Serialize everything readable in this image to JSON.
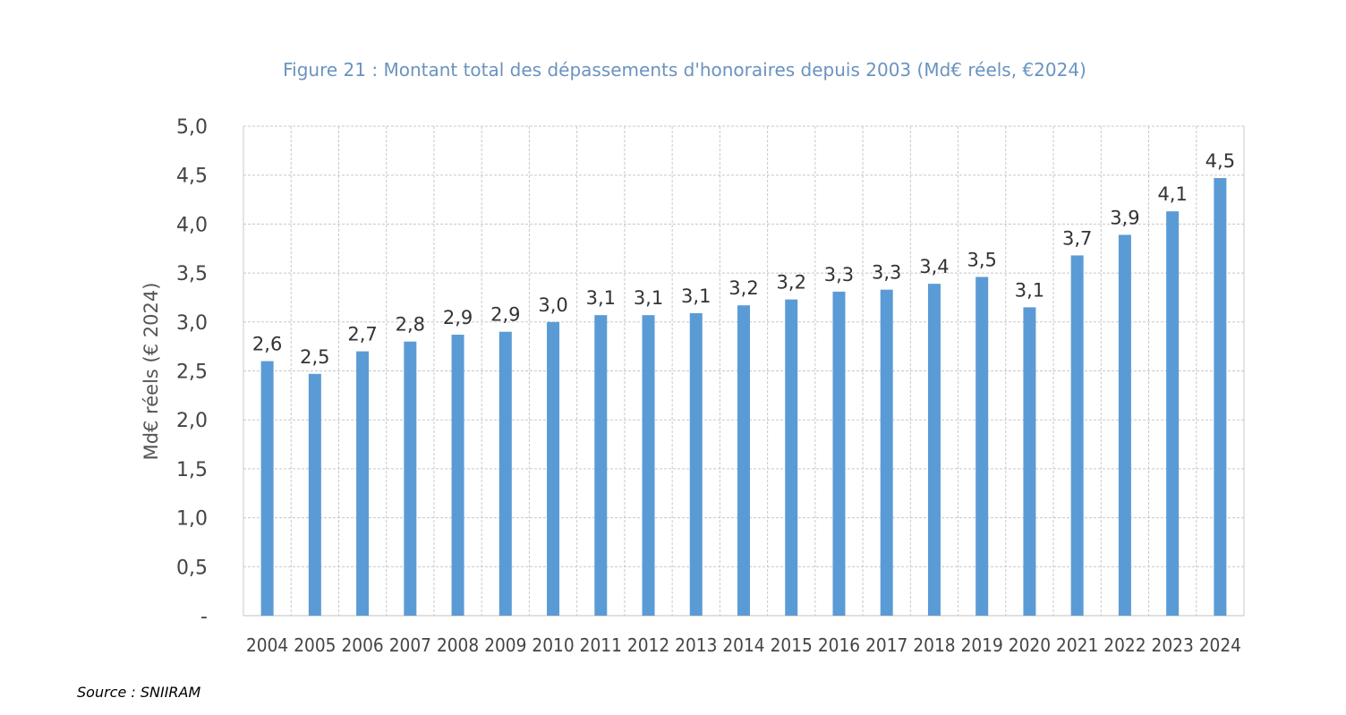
{
  "title": "Figure 21 : Montant total des dépassements d'honoraires depuis 2003 (Md€ réels, €2024)",
  "source": "Source : SNIIRAM",
  "chart_data": {
    "type": "bar",
    "title": "Figure 21 : Montant total des dépassements d'honoraires depuis 2003 (Md€ réels, €2024)",
    "xlabel": "",
    "ylabel": "Md€ réels (€ 2024)",
    "ylim": [
      0,
      5
    ],
    "yticks": [
      0,
      0.5,
      1,
      1.5,
      2,
      2.5,
      3,
      3.5,
      4,
      4.5,
      5
    ],
    "ytick_labels": [
      "-",
      "0,5",
      "1,0",
      "1,5",
      "2,0",
      "2,5",
      "3,0",
      "3,5",
      "4,0",
      "4,5",
      "5,0"
    ],
    "grid": true,
    "legend": "none",
    "bar_color": "#5b9bd5",
    "categories": [
      "2004",
      "2005",
      "2006",
      "2007",
      "2008",
      "2009",
      "2010",
      "2011",
      "2012",
      "2013",
      "2014",
      "2015",
      "2016",
      "2017",
      "2018",
      "2019",
      "2020",
      "2021",
      "2022",
      "2023",
      "2024"
    ],
    "values": [
      2.6,
      2.47,
      2.7,
      2.8,
      2.87,
      2.9,
      3.0,
      3.07,
      3.07,
      3.09,
      3.17,
      3.23,
      3.31,
      3.33,
      3.39,
      3.46,
      3.15,
      3.68,
      3.89,
      4.13,
      4.47
    ],
    "data_labels": [
      "2,6",
      "2,5",
      "2,7",
      "2,8",
      "2,9",
      "2,9",
      "3,0",
      "3,1",
      "3,1",
      "3,1",
      "3,2",
      "3,2",
      "3,3",
      "3,3",
      "3,4",
      "3,5",
      "3,1",
      "3,7",
      "3,9",
      "4,1",
      "4,5"
    ]
  }
}
